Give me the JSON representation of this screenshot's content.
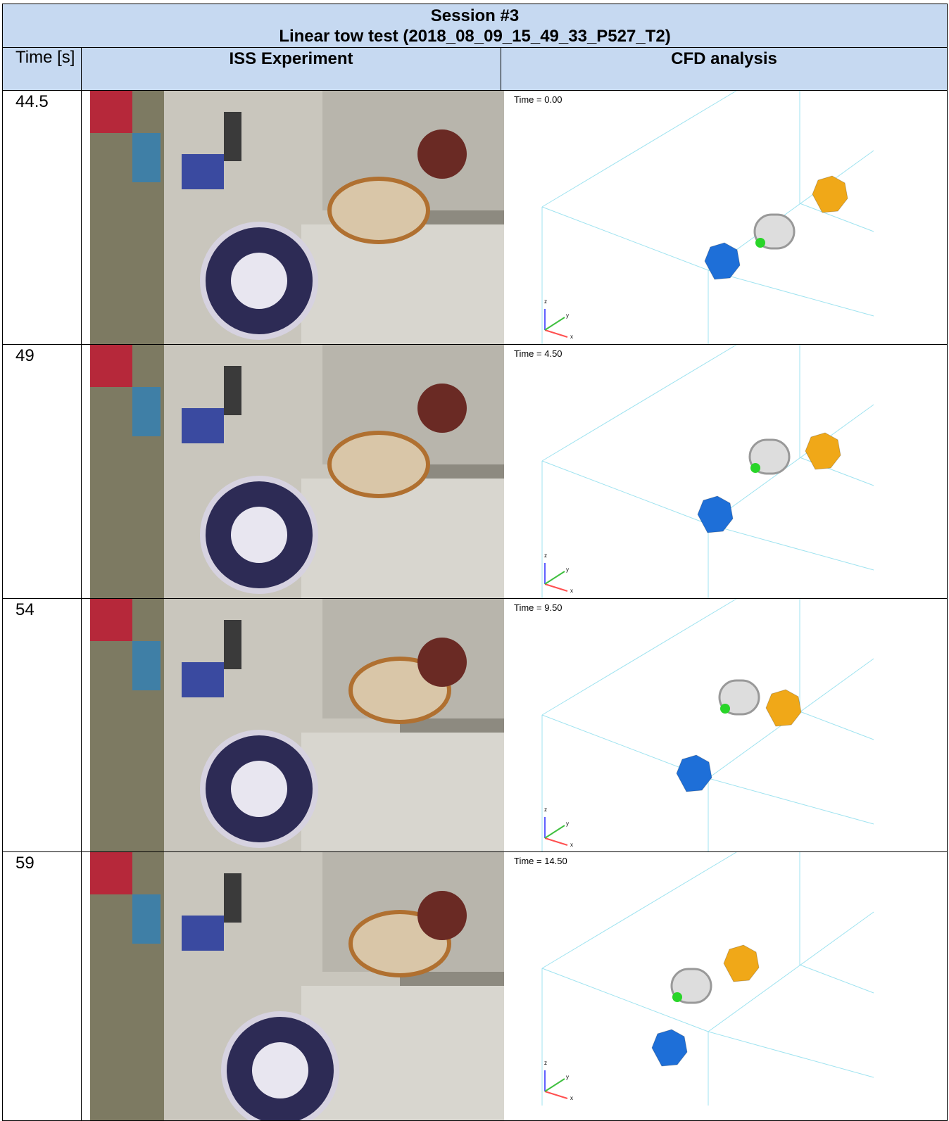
{
  "header": {
    "title": "Session #3",
    "subtitle": "Linear tow test (2018_08_09_15_49_33_P527_T2)"
  },
  "columns": [
    "Time [s]",
    "ISS Experiment",
    "CFD analysis"
  ],
  "axis_labels": [
    "z",
    "y",
    "x"
  ],
  "rows": [
    {
      "time": "44.5",
      "cfd_label": "Time = 0.00"
    },
    {
      "time": "49",
      "cfd_label": "Time = 4.50"
    },
    {
      "time": "54",
      "cfd_label": "Time = 9.50"
    },
    {
      "time": "59",
      "cfd_label": "Time = 14.50"
    }
  ]
}
